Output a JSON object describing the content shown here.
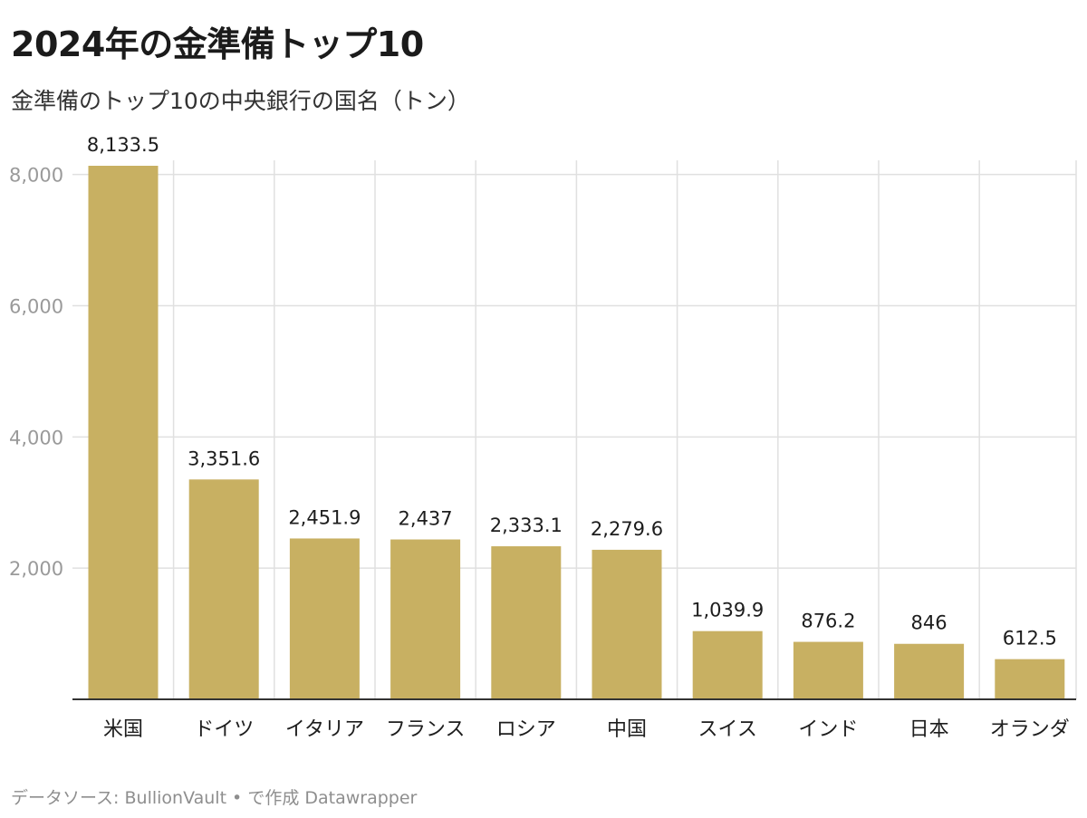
{
  "title": "2024年の金準備トップ10",
  "subtitle": "金準備のトップ10の中央銀行の国名（トン）",
  "footer": {
    "source_label": "データソース: ",
    "source_name": "BullionVault",
    "separator": " • ",
    "created_with": "で作成 ",
    "tool": "Datawrapper"
  },
  "colors": {
    "bar": "#c8b062",
    "grid": "#e0e0e0",
    "axis_line": "#333333",
    "tick_label": "#9a9a9a",
    "value_label": "#1d1d1d"
  },
  "chart_data": {
    "type": "bar",
    "categories": [
      "米国",
      "ドイツ",
      "イタリア",
      "フランス",
      "ロシア",
      "中国",
      "スイス",
      "インド",
      "日本",
      "オランダ"
    ],
    "values": [
      8133.5,
      3351.6,
      2451.9,
      2437,
      2333.1,
      2279.6,
      1039.9,
      876.2,
      846,
      612.5
    ],
    "value_labels": [
      "8,133.5",
      "3,351.6",
      "2,451.9",
      "2,437",
      "2,333.1",
      "2,279.6",
      "1,039.9",
      "876.2",
      "846",
      "612.5"
    ],
    "yticks": [
      2000,
      4000,
      6000,
      8000
    ],
    "ytick_labels": [
      "2,000",
      "4,000",
      "6,000",
      "8,000"
    ],
    "ylim": [
      0,
      8133.5
    ],
    "xlabel": "",
    "ylabel": "",
    "grid": true,
    "legend": "none"
  }
}
